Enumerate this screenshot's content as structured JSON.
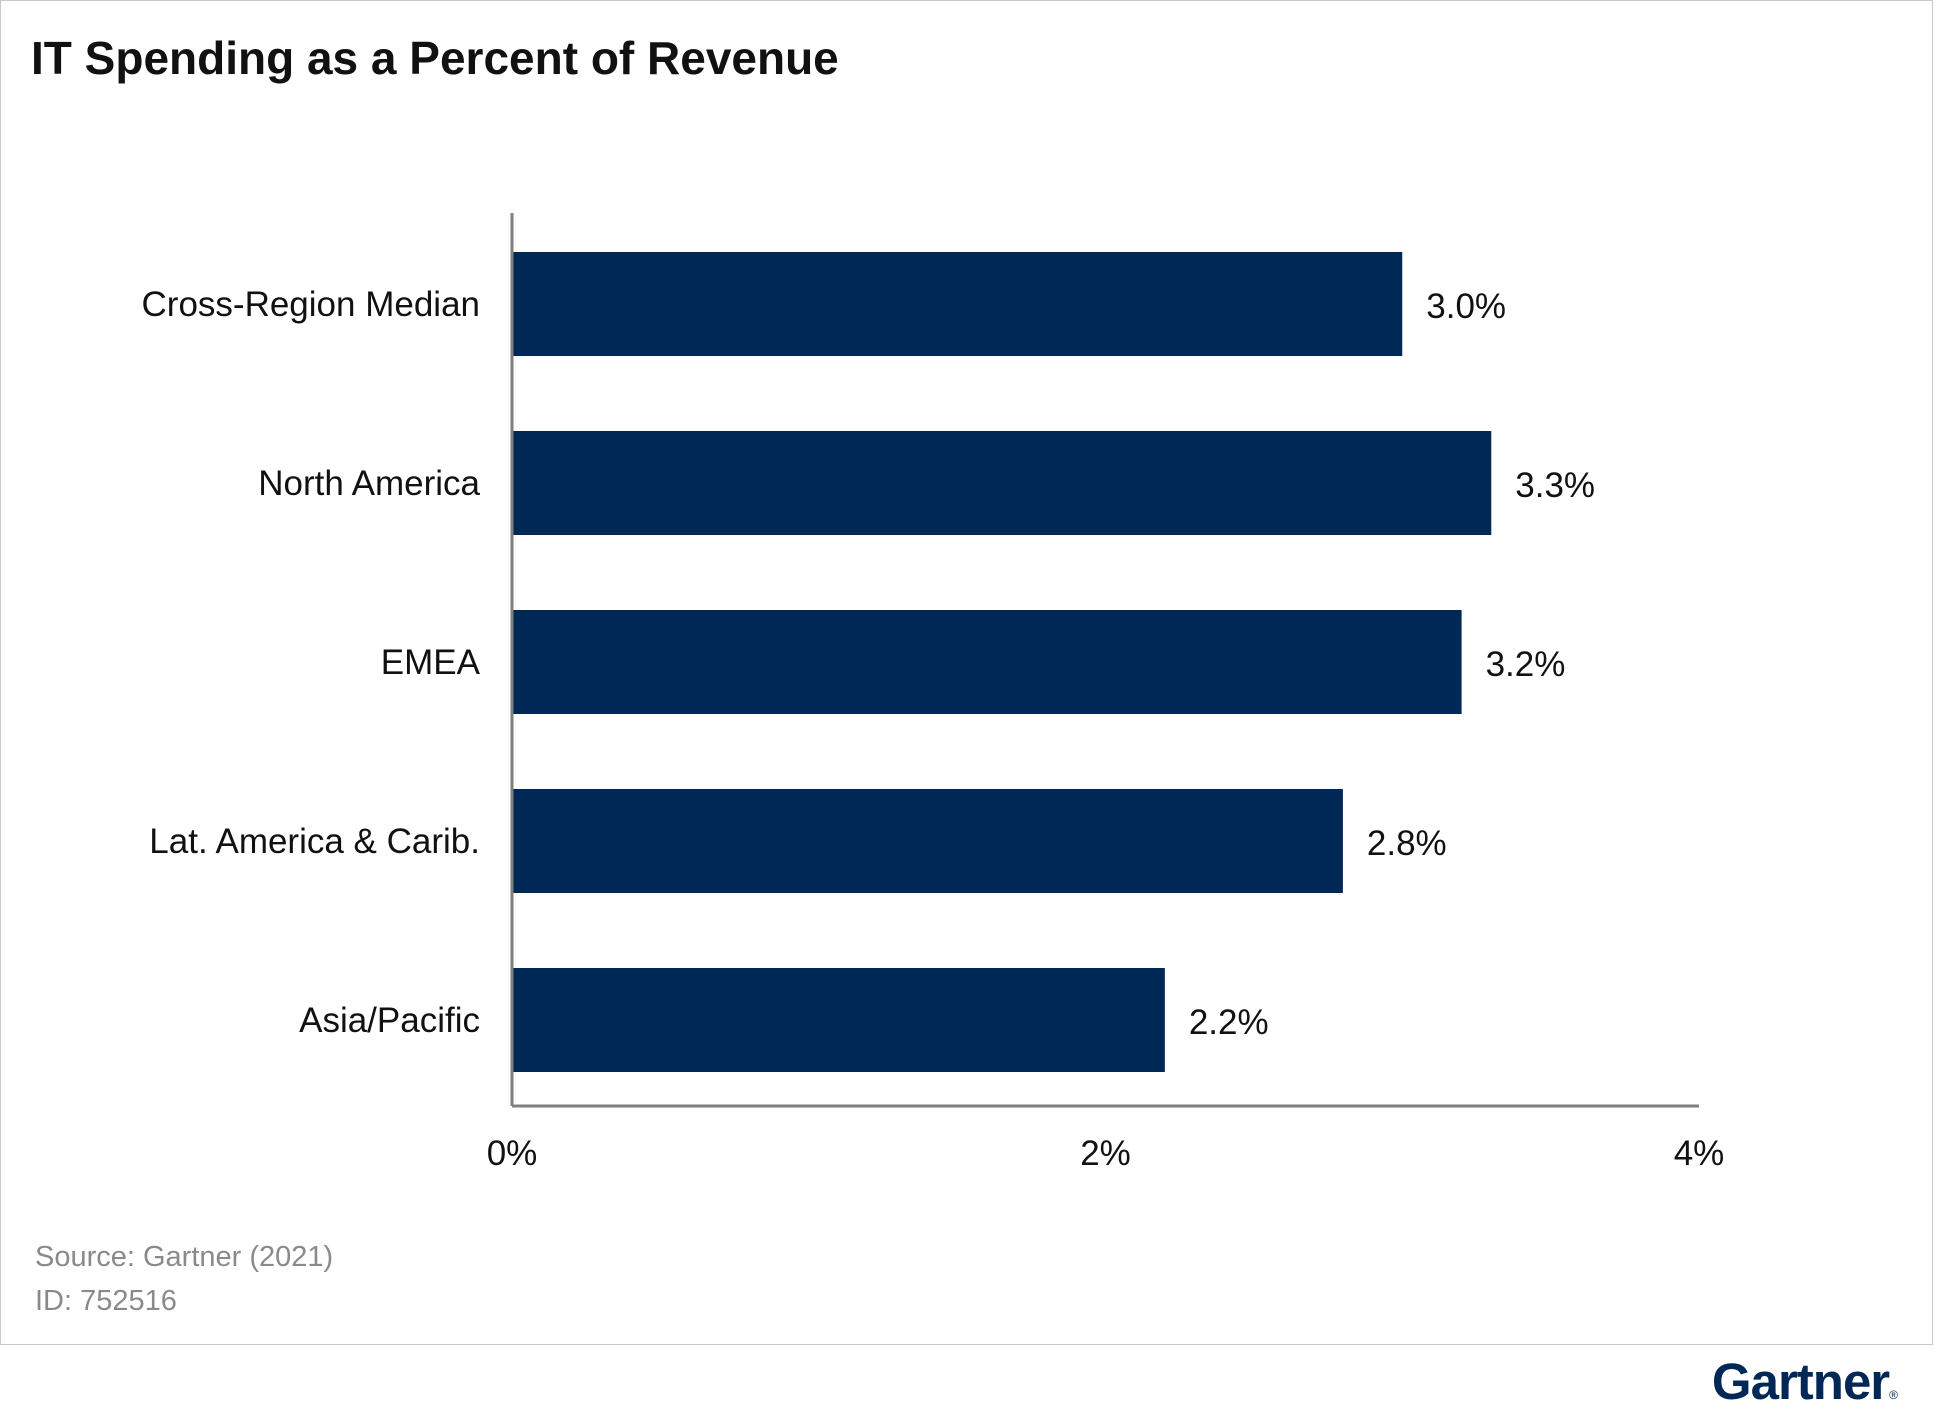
{
  "chart_data": {
    "type": "bar",
    "orientation": "horizontal",
    "title": "IT Spending as a Percent of Revenue",
    "categories": [
      "Cross-Region Median",
      "North America",
      "EMEA",
      "Lat. America & Carib.",
      "Asia/Pacific"
    ],
    "values": [
      3.0,
      3.3,
      3.2,
      2.8,
      2.2
    ],
    "data_labels": [
      "3.0%",
      "3.3%",
      "3.2%",
      "2.8%",
      "2.2%"
    ],
    "xlim": [
      0,
      4
    ],
    "x_ticks": [
      0,
      2,
      4
    ],
    "x_tick_labels": [
      "0%",
      "2%",
      "4%"
    ],
    "xlabel": "",
    "ylabel": "",
    "grid": false,
    "legend": "none",
    "bar_color": "#002856"
  },
  "footer": {
    "source": "Source: Gartner (2021)",
    "id": "ID: 752516"
  },
  "brand": {
    "name": "Gartner",
    "color": "#002856"
  }
}
